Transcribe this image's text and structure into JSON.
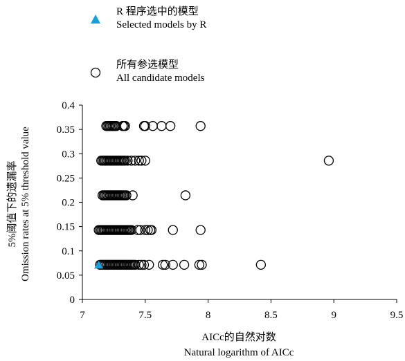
{
  "chart_data": {
    "type": "scatter",
    "title": "",
    "xlabel": [
      "AICc的自然对数",
      "Natural logarithm of AICc"
    ],
    "ylabel": [
      "5%阈值下的遗漏率",
      "Omission rates at 5% threshold value"
    ],
    "xlim": [
      7,
      9.5
    ],
    "ylim": [
      0,
      0.4
    ],
    "xticks": [
      "7",
      "7.5",
      "8",
      "8.5",
      "9",
      "9.5"
    ],
    "yticks": [
      "0",
      "0.05",
      "0.1",
      "0.15",
      "0.2",
      "0.25",
      "0.3",
      "0.35",
      "0.4"
    ],
    "grid": false,
    "legend_position": "top-left",
    "legend": [
      {
        "symbol": "filled-triangle",
        "lines": [
          "R 程序选中的模型",
          "Selected models by R"
        ],
        "color": "#1a9fd8"
      },
      {
        "symbol": "open-circle",
        "lines": [
          "所有参选模型",
          "All candidate models"
        ],
        "color": "#000000"
      }
    ],
    "series": [
      {
        "name": "Selected models by R",
        "marker": "triangle",
        "color": "#1a9fd8",
        "points": [
          [
            7.13,
            0.0714
          ]
        ]
      },
      {
        "name": "All candidate models",
        "marker": "circle",
        "color": "#000000",
        "points": [
          [
            7.19,
            0.357
          ],
          [
            7.2,
            0.357
          ],
          [
            7.21,
            0.357
          ],
          [
            7.22,
            0.357
          ],
          [
            7.23,
            0.357
          ],
          [
            7.24,
            0.357
          ],
          [
            7.25,
            0.357
          ],
          [
            7.26,
            0.357
          ],
          [
            7.27,
            0.357
          ],
          [
            7.32,
            0.357
          ],
          [
            7.33,
            0.357
          ],
          [
            7.34,
            0.357
          ],
          [
            7.49,
            0.357
          ],
          [
            7.5,
            0.357
          ],
          [
            7.56,
            0.357
          ],
          [
            7.63,
            0.357
          ],
          [
            7.7,
            0.357
          ],
          [
            7.94,
            0.357
          ],
          [
            7.15,
            0.2857
          ],
          [
            7.16,
            0.2857
          ],
          [
            7.17,
            0.2857
          ],
          [
            7.18,
            0.2857
          ],
          [
            7.19,
            0.2857
          ],
          [
            7.2,
            0.2857
          ],
          [
            7.21,
            0.2857
          ],
          [
            7.22,
            0.2857
          ],
          [
            7.23,
            0.2857
          ],
          [
            7.24,
            0.2857
          ],
          [
            7.25,
            0.2857
          ],
          [
            7.26,
            0.2857
          ],
          [
            7.27,
            0.2857
          ],
          [
            7.28,
            0.2857
          ],
          [
            7.29,
            0.2857
          ],
          [
            7.3,
            0.2857
          ],
          [
            7.31,
            0.2857
          ],
          [
            7.32,
            0.2857
          ],
          [
            7.33,
            0.2857
          ],
          [
            7.34,
            0.2857
          ],
          [
            7.36,
            0.2857
          ],
          [
            7.39,
            0.2857
          ],
          [
            7.42,
            0.2857
          ],
          [
            7.45,
            0.2857
          ],
          [
            7.47,
            0.2857
          ],
          [
            7.5,
            0.2857
          ],
          [
            8.96,
            0.2857
          ],
          [
            7.16,
            0.2143
          ],
          [
            7.17,
            0.2143
          ],
          [
            7.18,
            0.2143
          ],
          [
            7.19,
            0.2143
          ],
          [
            7.2,
            0.2143
          ],
          [
            7.21,
            0.2143
          ],
          [
            7.22,
            0.2143
          ],
          [
            7.23,
            0.2143
          ],
          [
            7.24,
            0.2143
          ],
          [
            7.25,
            0.2143
          ],
          [
            7.26,
            0.2143
          ],
          [
            7.27,
            0.2143
          ],
          [
            7.28,
            0.2143
          ],
          [
            7.29,
            0.2143
          ],
          [
            7.3,
            0.2143
          ],
          [
            7.31,
            0.2143
          ],
          [
            7.32,
            0.2143
          ],
          [
            7.33,
            0.2143
          ],
          [
            7.34,
            0.2143
          ],
          [
            7.35,
            0.2143
          ],
          [
            7.4,
            0.2143
          ],
          [
            7.82,
            0.2143
          ],
          [
            7.13,
            0.1429
          ],
          [
            7.14,
            0.1429
          ],
          [
            7.15,
            0.1429
          ],
          [
            7.16,
            0.1429
          ],
          [
            7.17,
            0.1429
          ],
          [
            7.18,
            0.1429
          ],
          [
            7.19,
            0.1429
          ],
          [
            7.2,
            0.1429
          ],
          [
            7.21,
            0.1429
          ],
          [
            7.22,
            0.1429
          ],
          [
            7.23,
            0.1429
          ],
          [
            7.24,
            0.1429
          ],
          [
            7.25,
            0.1429
          ],
          [
            7.26,
            0.1429
          ],
          [
            7.27,
            0.1429
          ],
          [
            7.28,
            0.1429
          ],
          [
            7.29,
            0.1429
          ],
          [
            7.3,
            0.1429
          ],
          [
            7.31,
            0.1429
          ],
          [
            7.32,
            0.1429
          ],
          [
            7.33,
            0.1429
          ],
          [
            7.34,
            0.1429
          ],
          [
            7.35,
            0.1429
          ],
          [
            7.36,
            0.1429
          ],
          [
            7.37,
            0.1429
          ],
          [
            7.38,
            0.1429
          ],
          [
            7.39,
            0.1429
          ],
          [
            7.44,
            0.1429
          ],
          [
            7.46,
            0.1429
          ],
          [
            7.5,
            0.1429
          ],
          [
            7.52,
            0.1429
          ],
          [
            7.54,
            0.1429
          ],
          [
            7.55,
            0.1429
          ],
          [
            7.72,
            0.1429
          ],
          [
            7.94,
            0.1429
          ],
          [
            7.14,
            0.0714
          ],
          [
            7.15,
            0.0714
          ],
          [
            7.16,
            0.0714
          ],
          [
            7.17,
            0.0714
          ],
          [
            7.18,
            0.0714
          ],
          [
            7.19,
            0.0714
          ],
          [
            7.2,
            0.0714
          ],
          [
            7.21,
            0.0714
          ],
          [
            7.22,
            0.0714
          ],
          [
            7.23,
            0.0714
          ],
          [
            7.24,
            0.0714
          ],
          [
            7.25,
            0.0714
          ],
          [
            7.26,
            0.0714
          ],
          [
            7.27,
            0.0714
          ],
          [
            7.28,
            0.0714
          ],
          [
            7.29,
            0.0714
          ],
          [
            7.3,
            0.0714
          ],
          [
            7.31,
            0.0714
          ],
          [
            7.32,
            0.0714
          ],
          [
            7.33,
            0.0714
          ],
          [
            7.34,
            0.0714
          ],
          [
            7.35,
            0.0714
          ],
          [
            7.36,
            0.0714
          ],
          [
            7.37,
            0.0714
          ],
          [
            7.38,
            0.0714
          ],
          [
            7.39,
            0.0714
          ],
          [
            7.4,
            0.0714
          ],
          [
            7.41,
            0.0714
          ],
          [
            7.42,
            0.0714
          ],
          [
            7.45,
            0.0714
          ],
          [
            7.47,
            0.0714
          ],
          [
            7.49,
            0.0714
          ],
          [
            7.53,
            0.0714
          ],
          [
            7.64,
            0.0714
          ],
          [
            7.66,
            0.0714
          ],
          [
            7.72,
            0.0714
          ],
          [
            7.81,
            0.0714
          ],
          [
            7.93,
            0.0714
          ],
          [
            7.95,
            0.0714
          ],
          [
            8.42,
            0.0714
          ]
        ]
      }
    ]
  }
}
